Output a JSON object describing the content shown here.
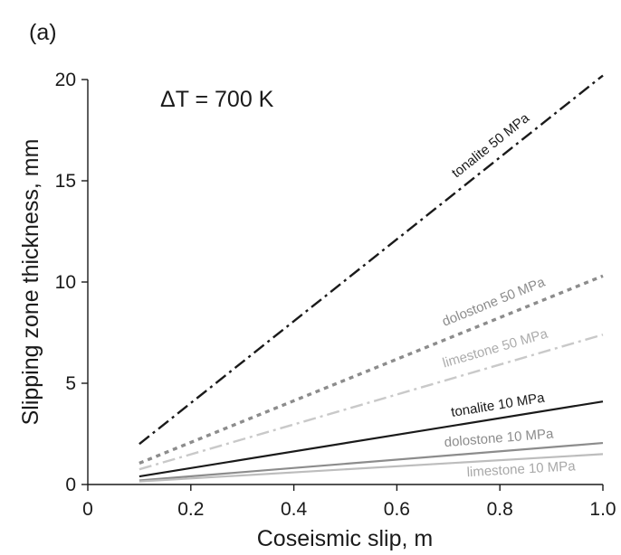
{
  "chart_data": {
    "type": "line",
    "panel_label": "(a)",
    "annotation": "ΔT = 700 K",
    "xlabel": "Coseismic slip, m",
    "ylabel": "Slipping zone thickness, mm",
    "xlim": [
      0.0,
      1.0
    ],
    "ylim": [
      0,
      20
    ],
    "xticks": [
      {
        "value": 0.0,
        "label": "0"
      },
      {
        "value": 0.2,
        "label": "0.2"
      },
      {
        "value": 0.4,
        "label": "0.4"
      },
      {
        "value": 0.6,
        "label": "0.6"
      },
      {
        "value": 0.8,
        "label": "0.8"
      },
      {
        "value": 1.0,
        "label": "1.0"
      }
    ],
    "yticks": [
      {
        "value": 0,
        "label": "0"
      },
      {
        "value": 5,
        "label": "5"
      },
      {
        "value": 10,
        "label": "10"
      },
      {
        "value": 15,
        "label": "15"
      },
      {
        "value": 20,
        "label": "20"
      }
    ],
    "grid": false,
    "series": [
      {
        "name": "tonalite 50 MPa",
        "x": [
          0.1,
          1.0
        ],
        "y": [
          2.0,
          20.2
        ],
        "color": "#1a1a1a",
        "style": "dashdot"
      },
      {
        "name": "dolostone 50 MPa",
        "x": [
          0.1,
          1.0
        ],
        "y": [
          1.05,
          10.3
        ],
        "color": "#8c8c8c",
        "style": "dotted"
      },
      {
        "name": "limestone 50 MPa",
        "x": [
          0.1,
          1.0
        ],
        "y": [
          0.75,
          7.4
        ],
        "color": "#c9c9c9",
        "style": "dashdot"
      },
      {
        "name": "tonalite 10 MPa",
        "x": [
          0.1,
          1.0
        ],
        "y": [
          0.4,
          4.1
        ],
        "color": "#1a1a1a",
        "style": "solid"
      },
      {
        "name": "dolostone 10 MPa",
        "x": [
          0.1,
          1.0
        ],
        "y": [
          0.2,
          2.05
        ],
        "color": "#8c8c8c",
        "style": "solid"
      },
      {
        "name": "limestone 10 MPa",
        "x": [
          0.1,
          1.0
        ],
        "y": [
          0.15,
          1.5
        ],
        "color": "#bdbdbd",
        "style": "solid"
      }
    ]
  }
}
